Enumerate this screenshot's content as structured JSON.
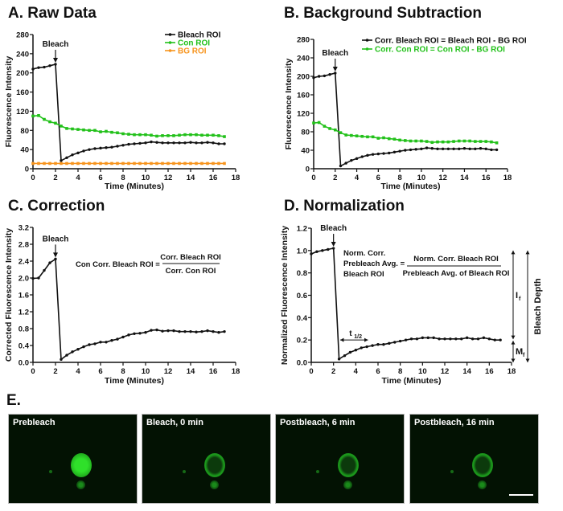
{
  "panels": {
    "A": {
      "title": "A. Raw Data"
    },
    "B": {
      "title": "B. Background Subtraction"
    },
    "C": {
      "title": "C. Correction"
    },
    "D": {
      "title": "D. Normalization"
    },
    "E": {
      "title": "E."
    }
  },
  "chart_data": [
    {
      "id": "A",
      "type": "line",
      "title": "A. Raw Data",
      "xlabel": "Time (Minutes)",
      "ylabel": "Fluorescence Intensity",
      "xlim": [
        0,
        18
      ],
      "ylim": [
        0,
        280
      ],
      "xticks": [
        0,
        2,
        4,
        6,
        8,
        10,
        12,
        14,
        16,
        18
      ],
      "yticks": [
        0,
        40,
        80,
        120,
        160,
        200,
        240,
        280
      ],
      "ytick_decimals": 0,
      "legend": "top-right",
      "annotation": {
        "label": "Bleach",
        "x": 2
      },
      "x": [
        0,
        0.5,
        1,
        1.5,
        2,
        2.5,
        3,
        3.5,
        4,
        4.5,
        5,
        5.5,
        6,
        6.5,
        7,
        7.5,
        8,
        8.5,
        9,
        9.5,
        10,
        10.5,
        11,
        11.5,
        12,
        12.5,
        13,
        13.5,
        14,
        14.5,
        15,
        15.5,
        16,
        16.5,
        17
      ],
      "series": [
        {
          "name": "Bleach ROI",
          "color": "#111111",
          "values": [
            208,
            211,
            212,
            215,
            218,
            17,
            23,
            29,
            33,
            37,
            40,
            42,
            43,
            44,
            45,
            47,
            49,
            51,
            52,
            53,
            54,
            56,
            55,
            54,
            54,
            54,
            54,
            54,
            55,
            54,
            54,
            55,
            54,
            52,
            52
          ]
        },
        {
          "name": "Con ROI",
          "color": "#22c11a",
          "values": [
            110,
            111,
            103,
            98,
            95,
            89,
            84,
            83,
            82,
            81,
            80,
            80,
            77,
            78,
            76,
            75,
            73,
            72,
            71,
            71,
            71,
            70,
            68,
            69,
            69,
            69,
            70,
            71,
            71,
            71,
            70,
            70,
            70,
            69,
            67
          ]
        },
        {
          "name": "BG ROI",
          "color": "#f7941d",
          "values": [
            11,
            11,
            11,
            11,
            11,
            11,
            11,
            11,
            11,
            11,
            11,
            11,
            11,
            11,
            11,
            11,
            11,
            11,
            11,
            11,
            11,
            11,
            11,
            11,
            11,
            11,
            11,
            11,
            11,
            11,
            11,
            11,
            11,
            11,
            11
          ]
        }
      ]
    },
    {
      "id": "B",
      "type": "line",
      "title": "B. Background Subtraction",
      "xlabel": "Time (Minutes)",
      "ylabel": "Fluorescence Intensity",
      "xlim": [
        0,
        18
      ],
      "ylim": [
        0,
        280
      ],
      "xticks": [
        0,
        2,
        4,
        6,
        8,
        10,
        12,
        14,
        16,
        18
      ],
      "yticks": [
        0,
        40,
        80,
        120,
        160,
        200,
        240,
        280
      ],
      "ytick_decimals": 0,
      "legend": "top-right",
      "annotation": {
        "label": "Bleach",
        "x": 2
      },
      "x": [
        0,
        0.5,
        1,
        1.5,
        2,
        2.5,
        3,
        3.5,
        4,
        4.5,
        5,
        5.5,
        6,
        6.5,
        7,
        7.5,
        8,
        8.5,
        9,
        9.5,
        10,
        10.5,
        11,
        11.5,
        12,
        12.5,
        13,
        13.5,
        14,
        14.5,
        15,
        15.5,
        16,
        16.5,
        17
      ],
      "series": [
        {
          "name": "Corr. Bleach ROI = Bleach ROI - BG ROI",
          "color": "#111111",
          "values": [
            197,
            200,
            201,
            204,
            207,
            6,
            12,
            18,
            22,
            26,
            29,
            31,
            32,
            33,
            34,
            36,
            38,
            40,
            41,
            42,
            43,
            45,
            44,
            43,
            43,
            43,
            43,
            43,
            44,
            43,
            43,
            44,
            43,
            41,
            41
          ]
        },
        {
          "name": "Corr. Con ROI = Con ROI - BG ROI",
          "color": "#22c11a",
          "values": [
            99,
            100,
            92,
            87,
            84,
            78,
            73,
            72,
            71,
            70,
            69,
            69,
            66,
            67,
            65,
            64,
            62,
            61,
            60,
            60,
            60,
            59,
            57,
            58,
            58,
            58,
            59,
            60,
            60,
            60,
            59,
            59,
            59,
            58,
            56
          ]
        }
      ]
    },
    {
      "id": "C",
      "type": "line",
      "title": "C. Correction",
      "xlabel": "Time (Minutes)",
      "ylabel": "Corrected Fluorescence Intensity",
      "xlim": [
        0,
        18
      ],
      "ylim": [
        0,
        3.2
      ],
      "xticks": [
        0,
        2,
        4,
        6,
        8,
        10,
        12,
        14,
        16,
        18
      ],
      "yticks": [
        0,
        0.4,
        0.8,
        1.2,
        1.6,
        2.0,
        2.4,
        2.8,
        3.2
      ],
      "ytick_decimals": 1,
      "annotation": {
        "label": "Bleach",
        "x": 2
      },
      "formula": {
        "lhs": "Con Corr. Bleach ROI =",
        "numerator": "Corr. Bleach ROI",
        "denominator": "Corr. Con ROI"
      },
      "x": [
        0,
        0.5,
        1,
        1.5,
        2,
        2.5,
        3,
        3.5,
        4,
        4.5,
        5,
        5.5,
        6,
        6.5,
        7,
        7.5,
        8,
        8.5,
        9,
        9.5,
        10,
        10.5,
        11,
        11.5,
        12,
        12.5,
        13,
        13.5,
        14,
        14.5,
        15,
        15.5,
        16,
        16.5,
        17
      ],
      "series": [
        {
          "color": "#111111",
          "values": [
            1.99,
            2.0,
            2.18,
            2.36,
            2.45,
            0.07,
            0.17,
            0.25,
            0.31,
            0.37,
            0.42,
            0.44,
            0.48,
            0.48,
            0.52,
            0.55,
            0.6,
            0.65,
            0.68,
            0.69,
            0.71,
            0.76,
            0.77,
            0.74,
            0.75,
            0.75,
            0.73,
            0.73,
            0.73,
            0.72,
            0.73,
            0.75,
            0.73,
            0.71,
            0.73
          ]
        }
      ]
    },
    {
      "id": "D",
      "type": "line",
      "title": "D. Normalization",
      "xlabel": "Time (Minutes)",
      "ylabel": "Normalized Fluorescence Intensity",
      "xlim": [
        0,
        18
      ],
      "ylim": [
        0,
        1.2
      ],
      "xticks": [
        0,
        2,
        4,
        6,
        8,
        10,
        12,
        14,
        16,
        18
      ],
      "yticks": [
        0,
        0.2,
        0.4,
        0.6,
        0.8,
        1.0,
        1.2
      ],
      "ytick_decimals": 1,
      "annotation": {
        "label": "Bleach",
        "x": 2
      },
      "formula": {
        "lhs_lines": [
          "Norm. Corr.",
          "Prebleach Avg. =",
          "Bleach ROI"
        ],
        "numerator": "Norm. Corr. Bleach ROI",
        "denominator": "Prebleach Avg. of Bleach ROI"
      },
      "half_time": {
        "label": "t",
        "sub": "1/2",
        "x_from": 2.6,
        "x_to": 5.1,
        "y": 0.2
      },
      "mobile_fraction": {
        "label": "M",
        "sub": "f",
        "y_from": 0,
        "y_to": 0.2
      },
      "immobile_fraction": {
        "label": "I",
        "sub": "f",
        "y_from": 0.2,
        "y_to": 1.0
      },
      "bleach_depth": {
        "label": "Bleach Depth",
        "y_from": 0,
        "y_to": 1.0
      },
      "x": [
        0,
        0.5,
        1,
        1.5,
        2,
        2.5,
        3,
        3.5,
        4,
        4.5,
        5,
        5.5,
        6,
        6.5,
        7,
        7.5,
        8,
        8.5,
        9,
        9.5,
        10,
        10.5,
        11,
        11.5,
        12,
        12.5,
        13,
        13.5,
        14,
        14.5,
        15,
        15.5,
        16,
        16.5,
        17
      ],
      "series": [
        {
          "color": "#111111",
          "values": [
            0.97,
            0.99,
            1.0,
            1.01,
            1.02,
            0.03,
            0.06,
            0.09,
            0.11,
            0.13,
            0.14,
            0.15,
            0.16,
            0.16,
            0.17,
            0.18,
            0.19,
            0.2,
            0.21,
            0.21,
            0.22,
            0.22,
            0.22,
            0.21,
            0.21,
            0.21,
            0.21,
            0.21,
            0.22,
            0.21,
            0.21,
            0.22,
            0.21,
            0.2,
            0.2
          ]
        }
      ]
    }
  ],
  "micrographs": [
    {
      "label": "Prebleach",
      "state": "bright"
    },
    {
      "label": "Bleach, 0 min",
      "state": "ring"
    },
    {
      "label": "Postbleach, 6 min",
      "state": "ring"
    },
    {
      "label": "Postbleach, 16 min",
      "state": "ring",
      "scale_bar": true
    }
  ]
}
